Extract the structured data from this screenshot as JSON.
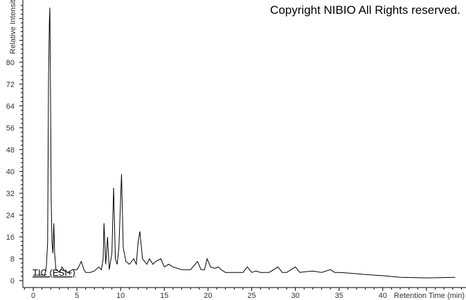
{
  "chart_data": {
    "type": "line",
    "title": "Copyright NIBIO All Rights reserved.",
    "xlabel": "Retention Time (min)",
    "ylabel": "Relative Intensity",
    "annotation": "TIC (ESI+)",
    "xlim": [
      -1,
      49.5
    ],
    "ylim": [
      -2.5,
      102
    ],
    "xticks": [
      0,
      5,
      10,
      15,
      20,
      25,
      30,
      35,
      40
    ],
    "yticks": [
      0,
      8,
      16,
      24,
      32,
      40,
      48,
      56,
      64,
      72,
      80
    ],
    "grid": false,
    "line_color": "#000000",
    "series": [
      {
        "points": [
          [
            0,
            2
          ],
          [
            1.3,
            2
          ],
          [
            1.5,
            5
          ],
          [
            1.65,
            14
          ],
          [
            1.75,
            75
          ],
          [
            1.85,
            95
          ],
          [
            1.9,
            100
          ],
          [
            2.0,
            60
          ],
          [
            2.05,
            30
          ],
          [
            2.15,
            14
          ],
          [
            2.25,
            10
          ],
          [
            2.35,
            21
          ],
          [
            2.45,
            10
          ],
          [
            2.6,
            4
          ],
          [
            3,
            3
          ],
          [
            3.3,
            5
          ],
          [
            3.6,
            3.5
          ],
          [
            4,
            3
          ],
          [
            4.5,
            4
          ],
          [
            5.0,
            4
          ],
          [
            5.2,
            5
          ],
          [
            5.5,
            7
          ],
          [
            5.8,
            4
          ],
          [
            6,
            3
          ],
          [
            6.5,
            3
          ],
          [
            7,
            3.5
          ],
          [
            7.5,
            5
          ],
          [
            7.8,
            4
          ],
          [
            8.0,
            8
          ],
          [
            8.1,
            21
          ],
          [
            8.3,
            6
          ],
          [
            8.5,
            16
          ],
          [
            8.7,
            4
          ],
          [
            9.0,
            10
          ],
          [
            9.2,
            34
          ],
          [
            9.4,
            8
          ],
          [
            9.6,
            6
          ],
          [
            9.8,
            12
          ],
          [
            10.1,
            39
          ],
          [
            10.3,
            12
          ],
          [
            10.6,
            7
          ],
          [
            11,
            6
          ],
          [
            11.5,
            8
          ],
          [
            11.8,
            6
          ],
          [
            12,
            14
          ],
          [
            12.2,
            18
          ],
          [
            12.5,
            8
          ],
          [
            13,
            6
          ],
          [
            13.3,
            8
          ],
          [
            13.7,
            6
          ],
          [
            14,
            7
          ],
          [
            14.6,
            8
          ],
          [
            15,
            5
          ],
          [
            15.5,
            6
          ],
          [
            16,
            5
          ],
          [
            16.5,
            4.5
          ],
          [
            17,
            4
          ],
          [
            18,
            4
          ],
          [
            18.8,
            7
          ],
          [
            19.2,
            4
          ],
          [
            19.6,
            4
          ],
          [
            19.9,
            8
          ],
          [
            20.3,
            5
          ],
          [
            20.8,
            4.5
          ],
          [
            21.2,
            5
          ],
          [
            21.5,
            4
          ],
          [
            22,
            3
          ],
          [
            23,
            3
          ],
          [
            24,
            3
          ],
          [
            24.5,
            5
          ],
          [
            25,
            3
          ],
          [
            25.5,
            3.5
          ],
          [
            26,
            3
          ],
          [
            27,
            3
          ],
          [
            28,
            5
          ],
          [
            28.5,
            3
          ],
          [
            29,
            3
          ],
          [
            30,
            5
          ],
          [
            30.5,
            3
          ],
          [
            31,
            3.2
          ],
          [
            32,
            3.5
          ],
          [
            33,
            3
          ],
          [
            34,
            4
          ],
          [
            34.5,
            3
          ],
          [
            35,
            3
          ],
          [
            36,
            2.8
          ],
          [
            37,
            2.5
          ],
          [
            38,
            2.2
          ],
          [
            40,
            1.8
          ],
          [
            42,
            1.2
          ],
          [
            45,
            1
          ],
          [
            48.3,
            1.2
          ]
        ]
      }
    ]
  }
}
